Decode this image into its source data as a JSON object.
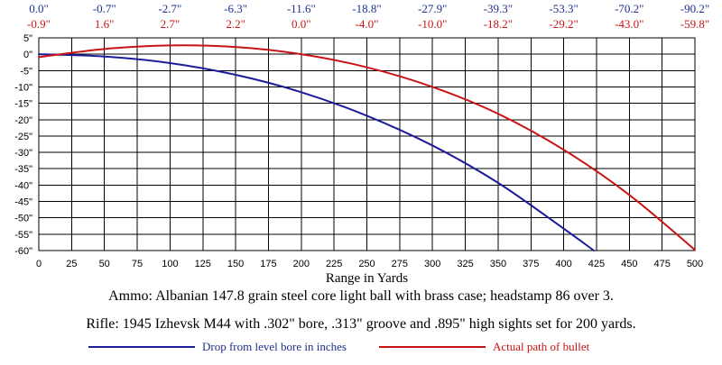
{
  "colors": {
    "drop": "#1c1c9b",
    "path": "#c81414",
    "grid": "#000000",
    "top_drop_labels": "#1f2f8a",
    "top_path_labels": "#c81414",
    "legend_drop_text": "#1f2f8a",
    "legend_path_text": "#c81414"
  },
  "captions": {
    "ammo": "Ammo:  Albanian 147.8 grain steel core light ball with brass case; headstamp 86 over 3.",
    "rifle": "Rifle:  1945 Izhevsk M44 with .302\" bore, .313\" groove and .895\" high sights set for 200 yards."
  },
  "chart_data": {
    "type": "line",
    "title": "",
    "xlabel": "Range in Yards",
    "ylabel": "",
    "xlim": [
      0,
      500
    ],
    "ylim": [
      -60,
      5
    ],
    "grid": true,
    "legend_placement": "bottom",
    "x_ticks": [
      0,
      25,
      50,
      75,
      100,
      125,
      150,
      175,
      200,
      225,
      250,
      275,
      300,
      325,
      350,
      375,
      400,
      425,
      450,
      475,
      500
    ],
    "y_ticks": [
      5,
      0,
      -5,
      -10,
      -15,
      -20,
      -25,
      -30,
      -35,
      -40,
      -45,
      -50,
      -55,
      -60
    ],
    "y_tick_labels": [
      "5\"",
      "0\"",
      "-5\"",
      "-10\"",
      "-15\"",
      "-20\"",
      "-25\"",
      "-30\"",
      "-35\"",
      "-40\"",
      "-45\"",
      "-50\"",
      "-55\"",
      "-60\""
    ],
    "top_labels": [
      {
        "x": 0,
        "drop": "0.0\"",
        "path": "-0.9\""
      },
      {
        "x": 50,
        "drop": "-0.7\"",
        "path": "1.6\""
      },
      {
        "x": 100,
        "drop": "-2.7\"",
        "path": "2.7\""
      },
      {
        "x": 150,
        "drop": "-6.3\"",
        "path": "2.2\""
      },
      {
        "x": 200,
        "drop": "-11.6\"",
        "path": "0.0\""
      },
      {
        "x": 250,
        "drop": "-18.8\"",
        "path": "-4.0\""
      },
      {
        "x": 300,
        "drop": "-27.9\"",
        "path": "-10.0\""
      },
      {
        "x": 350,
        "drop": "-39.3\"",
        "path": "-18.2\""
      },
      {
        "x": 400,
        "drop": "-53.3\"",
        "path": "-29.2\""
      },
      {
        "x": 450,
        "drop": "-70.2\"",
        "path": "-43.0\""
      },
      {
        "x": 500,
        "drop": "-90.2\"",
        "path": "-59.8\""
      }
    ],
    "series": [
      {
        "name": "Drop from level bore in inches",
        "key": "drop",
        "x": [
          0,
          50,
          100,
          150,
          200,
          250,
          300,
          350,
          400,
          423
        ],
        "y": [
          0.0,
          -0.7,
          -2.7,
          -6.3,
          -11.6,
          -18.8,
          -27.9,
          -39.3,
          -53.3,
          -60.0
        ]
      },
      {
        "name": "Actual path of bullet",
        "key": "path",
        "x": [
          0,
          50,
          100,
          150,
          200,
          250,
          300,
          350,
          400,
          450,
          500
        ],
        "y": [
          -0.9,
          1.6,
          2.7,
          2.2,
          0.0,
          -4.0,
          -10.0,
          -18.2,
          -29.2,
          -43.0,
          -59.8
        ]
      }
    ]
  }
}
